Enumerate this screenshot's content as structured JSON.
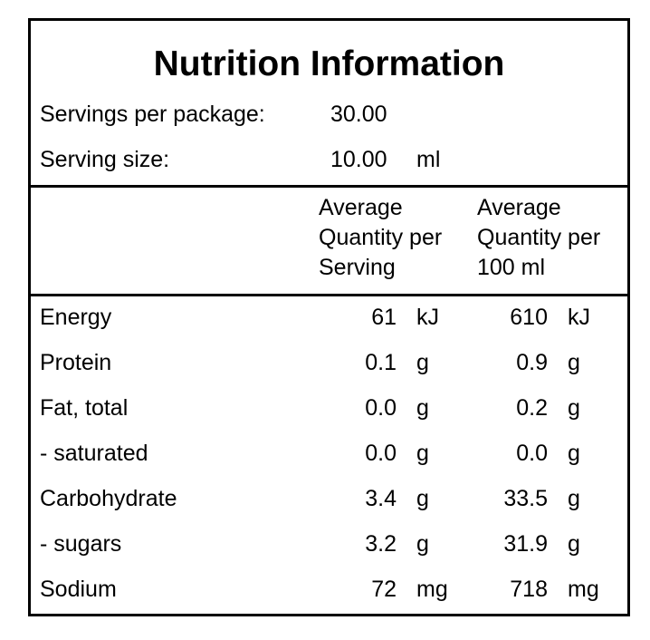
{
  "panel": {
    "title": "Nutrition Information",
    "servings": {
      "label": "Servings per package:",
      "value": "30.00"
    },
    "serving_size": {
      "label": "Serving size:",
      "value": "10.00",
      "unit": "ml"
    },
    "headers": {
      "per_serving": [
        "Average",
        "Quantity per",
        "Serving"
      ],
      "per_100": [
        "Average",
        "Quantity per",
        "100 ml"
      ]
    },
    "rows": [
      {
        "name": "Energy",
        "serving": "61",
        "serving_unit": "kJ",
        "per100": "610",
        "per100_unit": "kJ"
      },
      {
        "name": "Protein",
        "serving": "0.1",
        "serving_unit": "g",
        "per100": "0.9",
        "per100_unit": "g"
      },
      {
        "name": "Fat, total",
        "serving": "0.0",
        "serving_unit": "g",
        "per100": "0.2",
        "per100_unit": "g"
      },
      {
        "name": "- saturated",
        "serving": "0.0",
        "serving_unit": "g",
        "per100": "0.0",
        "per100_unit": "g"
      },
      {
        "name": "Carbohydrate",
        "serving": "3.4",
        "serving_unit": "g",
        "per100": "33.5",
        "per100_unit": "g"
      },
      {
        "name": "- sugars",
        "serving": "3.2",
        "serving_unit": "g",
        "per100": "31.9",
        "per100_unit": "g"
      },
      {
        "name": "Sodium",
        "serving": "72",
        "serving_unit": "mg",
        "per100": "718",
        "per100_unit": "mg"
      }
    ]
  }
}
